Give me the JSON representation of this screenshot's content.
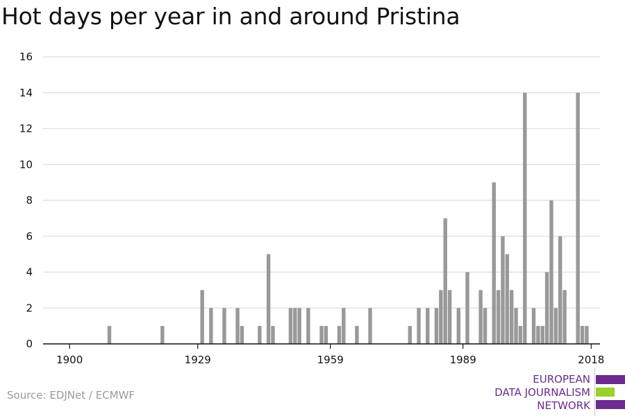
{
  "title": "Hot days per year in and around Pristina",
  "source": "Source: EDJNet / ECMWF",
  "logo": {
    "line1": "EUROPEAN",
    "line2": "DATA JOURNALISM",
    "line3": "NETWORK",
    "colors": {
      "purple": "#6b2b8f",
      "green": "#9ad02c"
    }
  },
  "colors": {
    "bar": "#999999",
    "grid": "#dddddd",
    "axis": "#111111"
  },
  "chart_data": {
    "type": "bar",
    "title": "Hot days per year in and around Pristina",
    "xlabel": "",
    "ylabel": "",
    "xlim": [
      1894,
      2020
    ],
    "ylim": [
      0,
      16
    ],
    "x_ticks": [
      1900,
      1929,
      1959,
      1989,
      2018
    ],
    "y_ticks": [
      0,
      2,
      4,
      6,
      8,
      10,
      12,
      14,
      16
    ],
    "grid": true,
    "x": [
      1909,
      1921,
      1930,
      1932,
      1935,
      1938,
      1939,
      1943,
      1945,
      1946,
      1950,
      1951,
      1952,
      1954,
      1957,
      1958,
      1961,
      1962,
      1965,
      1968,
      1977,
      1979,
      1981,
      1983,
      1984,
      1985,
      1986,
      1988,
      1990,
      1993,
      1994,
      1996,
      1997,
      1998,
      1999,
      2000,
      2001,
      2002,
      2003,
      2005,
      2006,
      2007,
      2008,
      2009,
      2010,
      2011,
      2012,
      2015,
      2016,
      2017
    ],
    "values": [
      1,
      1,
      3,
      2,
      2,
      2,
      1,
      1,
      5,
      1,
      2,
      2,
      2,
      2,
      1,
      1,
      1,
      2,
      1,
      2,
      1,
      2,
      2,
      2,
      3,
      7,
      3,
      2,
      4,
      3,
      2,
      9,
      3,
      6,
      5,
      3,
      2,
      1,
      14,
      2,
      1,
      1,
      4,
      8,
      2,
      6,
      3,
      14,
      1,
      1
    ]
  }
}
